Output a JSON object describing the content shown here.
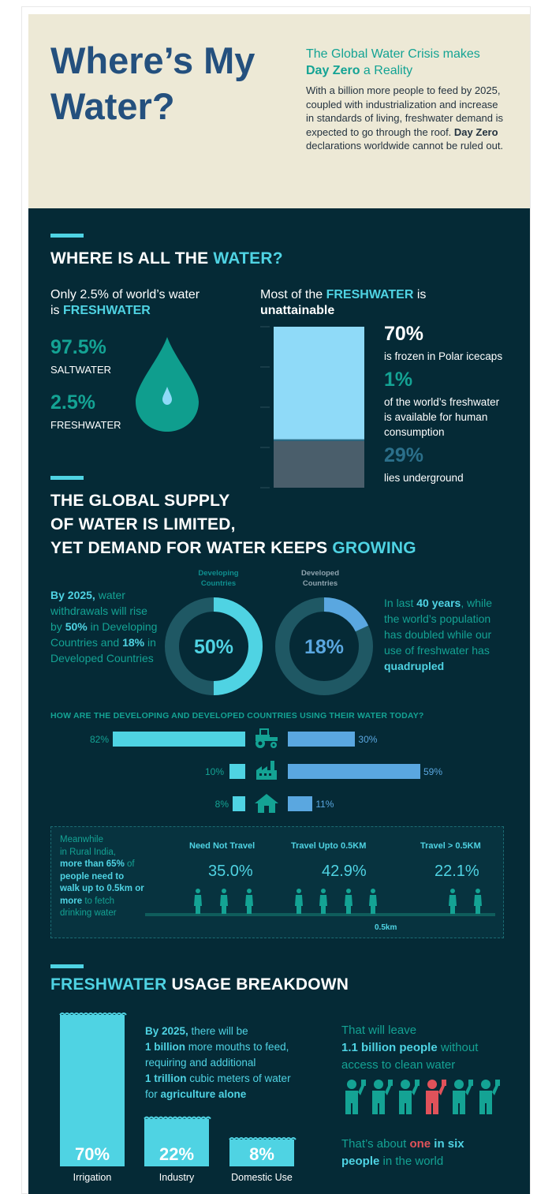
{
  "hero": {
    "title_line1": "Where’s My",
    "title_line2": "Water?",
    "subtitle_pre": "The Global Water Crisis makes",
    "subtitle_bold": "Day Zero",
    "subtitle_post": " a Reality",
    "body_pre": "With a billion more people to feed by 2025, coupled with industrialization and increase in standards of living, freshwater demand is expected to go through the roof. ",
    "body_bold": "Day Zero",
    "body_post": " declarations worldwide cannot be ruled out."
  },
  "section1": {
    "heading_pre": "WHERE IS ALL THE ",
    "heading_accent": "WATER?",
    "left_intro_pre": "Only 2.5% of world’s water",
    "left_intro_mid": "is ",
    "left_intro_accent": "FRESHWATER",
    "salt_value": "97.5%",
    "salt_label": "SALTWATER",
    "fresh_value": "2.5%",
    "fresh_label": "FRESHWATER",
    "right_intro_pre": "Most of the ",
    "right_intro_accent": "FRESHWATER",
    "right_intro_post": " is",
    "right_intro_bold": "unattainable",
    "stats": [
      {
        "value": "70%",
        "label_lines": [
          "is frozen in Polar icecaps"
        ]
      },
      {
        "value": "1%",
        "label_lines": [
          "of the world’s freshwater",
          "is available for human",
          "consumption"
        ]
      },
      {
        "value": "29%",
        "label_lines": [
          "lies underground"
        ]
      }
    ],
    "stack": {
      "frozen": 70,
      "available": 1,
      "underground": 29,
      "colors": {
        "frozen": "#8fdaf8",
        "available": "#2b6f8a",
        "underground": "#4a5e6b"
      }
    }
  },
  "section2": {
    "heading_line1": "THE GLOBAL SUPPLY",
    "heading_line2": "OF WATER IS LIMITED,",
    "heading_line3_pre": "YET DEMAND FOR WATER KEEPS ",
    "heading_line3_accent": "GROWING",
    "left_text": {
      "b1": "By 2025,",
      "t1": " water withdrawals will rise by ",
      "b2": "50%",
      "t2": " in Developing Countries and ",
      "b3": "18%",
      "t3": " in Developed Countries"
    },
    "right_text": {
      "t1": "In last ",
      "b1": "40 years",
      "t2": ", while the world’s population has doubled while our use of freshwater has ",
      "b2": "quadrupled"
    },
    "donuts": [
      {
        "label_line1": "Developing",
        "label_line2": "Countries",
        "value": 50,
        "display": "50%",
        "color": "#4fd3e3"
      },
      {
        "label_line1": "Developed",
        "label_line2": "Countries",
        "value": 18,
        "display": "18%",
        "color": "#5aa7e0"
      }
    ],
    "usage_question": "HOW ARE THE DEVELOPING AND DEVELOPED COUNTRIES USING THEIR WATER TODAY?",
    "usage_rows": [
      {
        "icon": "tractor-icon",
        "developing": 82,
        "developing_label": "82%",
        "developed": 30,
        "developed_label": "30%"
      },
      {
        "icon": "factory-icon",
        "developing": 10,
        "developing_label": "10%",
        "developed": 59,
        "developed_label": "59%"
      },
      {
        "icon": "house-icon",
        "developing": 8,
        "developing_label": "8%",
        "developed": 11,
        "developed_label": "11%"
      }
    ],
    "rural": {
      "t1": "Meanwhile",
      "t2": "in Rural India,",
      "b1": "more than 65%",
      "t3": " of",
      "b2": "people need to",
      "b3": "walk up to 0.5km or",
      "b4": "more",
      "t4": " to fetch",
      "t5": "drinking water",
      "columns": [
        {
          "heading": "Need Not Travel",
          "value": "35.0%"
        },
        {
          "heading": "Travel Upto 0.5KM",
          "value": "42.9%"
        },
        {
          "heading": "Travel > 0.5KM",
          "value": "22.1%"
        }
      ],
      "distance_label": "0.5km"
    }
  },
  "section3": {
    "heading_accent": "FRESHWATER",
    "heading_post": " USAGE BREAKDOWN",
    "bars": [
      {
        "value": 70,
        "display": "70%",
        "label": "Irrigation"
      },
      {
        "value": 22,
        "display": "22%",
        "label": "Industry"
      },
      {
        "value": 8,
        "display": "8%",
        "label": "Domestic Use"
      }
    ],
    "middle": {
      "b1": "By 2025,",
      "t1": " there will be",
      "b2": "1 billion",
      "t2": " more mouths  to feed,",
      "t3": "requiring and additional",
      "b3": "1 trillion",
      "t4": " cubic meters of water",
      "t5": "for ",
      "b4": "agriculture alone"
    },
    "right_top": {
      "t1": "That will leave",
      "b1": "1.1 billion people",
      "t2": " without",
      "t3": "access to clean water"
    },
    "right_bottom": {
      "t1": "That’s about ",
      "r1": "one",
      "b1": " in six",
      "b2": "people",
      "t2": " in the world"
    },
    "people_colors": [
      "#14a394",
      "#14a394",
      "#14a394",
      "#e0525a",
      "#14a394",
      "#14a394"
    ]
  }
}
